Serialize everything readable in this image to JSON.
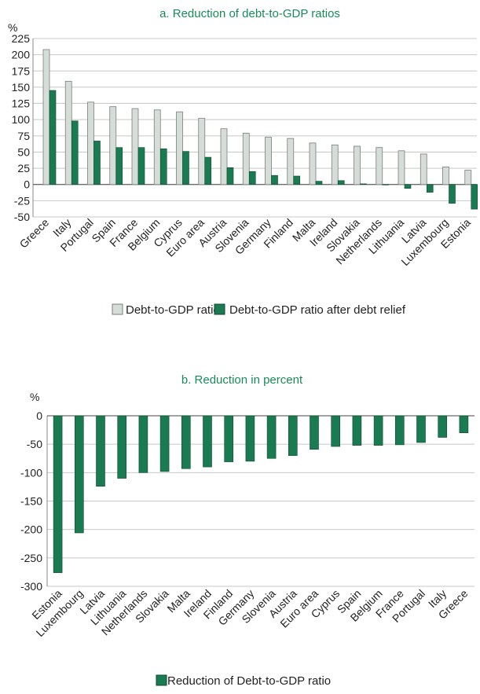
{
  "colors": {
    "title": "#1a8a5a",
    "ratio_fill": "#d6dcd7",
    "ratio_stroke": "#7a7f7b",
    "relief_fill": "#1a7a52",
    "relief_stroke": "#0d4a30",
    "grid": "#c8c8c8"
  },
  "chart_data": [
    {
      "type": "bar",
      "title": "a. Reduction of  debt-to-GDP ratios",
      "ylabel": "%",
      "xlabel": "",
      "ylim": [
        -50,
        225
      ],
      "yticks": [
        225,
        200,
        175,
        150,
        125,
        100,
        75,
        50,
        25,
        0,
        -25,
        -50
      ],
      "grid": true,
      "legend_position": "bottom",
      "categories": [
        "Greece",
        "Italy",
        "Portugal",
        "Spain",
        "France",
        "Belgium",
        "Cyprus",
        "Euro area",
        "Austria",
        "Slovenia",
        "Germany",
        "Finland",
        "Malta",
        "Ireland",
        "Slovakia",
        "Netherlands",
        "Lithuania",
        "Latvia",
        "Luxembourg",
        "Estonia"
      ],
      "series": [
        {
          "name": "Debt-to-GDP ratio",
          "values": [
            208,
            159,
            127,
            120,
            117,
            115,
            112,
            102,
            86,
            79,
            73,
            71,
            64,
            61,
            59,
            57,
            52,
            47,
            27,
            22
          ]
        },
        {
          "name": "Debt-to-GDP ratio after debt relief",
          "values": [
            145,
            98,
            67,
            57,
            57,
            55,
            51,
            42,
            26,
            20,
            14,
            13,
            5,
            6,
            1,
            0,
            -6,
            -12,
            -29,
            -38
          ]
        }
      ]
    },
    {
      "type": "bar",
      "title": "b. Reduction in percent",
      "ylabel": "%",
      "xlabel": "",
      "ylim": [
        -300,
        0
      ],
      "yticks": [
        0,
        -50,
        -100,
        -150,
        -200,
        -250,
        -300
      ],
      "grid": true,
      "legend_position": "bottom",
      "categories": [
        "Estonia",
        "Luxembourg",
        "Latvia",
        "Lithuania",
        "Netherlands",
        "Slovakia",
        "Malta",
        "Ireland",
        "Finland",
        "Germany",
        "Slovenia",
        "Austria",
        "Euro area",
        "Cyprus",
        "Spain",
        "Belgium",
        "France",
        "Portugal",
        "Italy",
        "Greece"
      ],
      "series": [
        {
          "name": "Reduction of Debt-to-GDP ratio",
          "values": [
            -276,
            -206,
            -124,
            -110,
            -100,
            -98,
            -93,
            -90,
            -81,
            -80,
            -75,
            -70,
            -59,
            -54,
            -52,
            -52,
            -51,
            -47,
            -38,
            -30
          ]
        }
      ]
    }
  ]
}
